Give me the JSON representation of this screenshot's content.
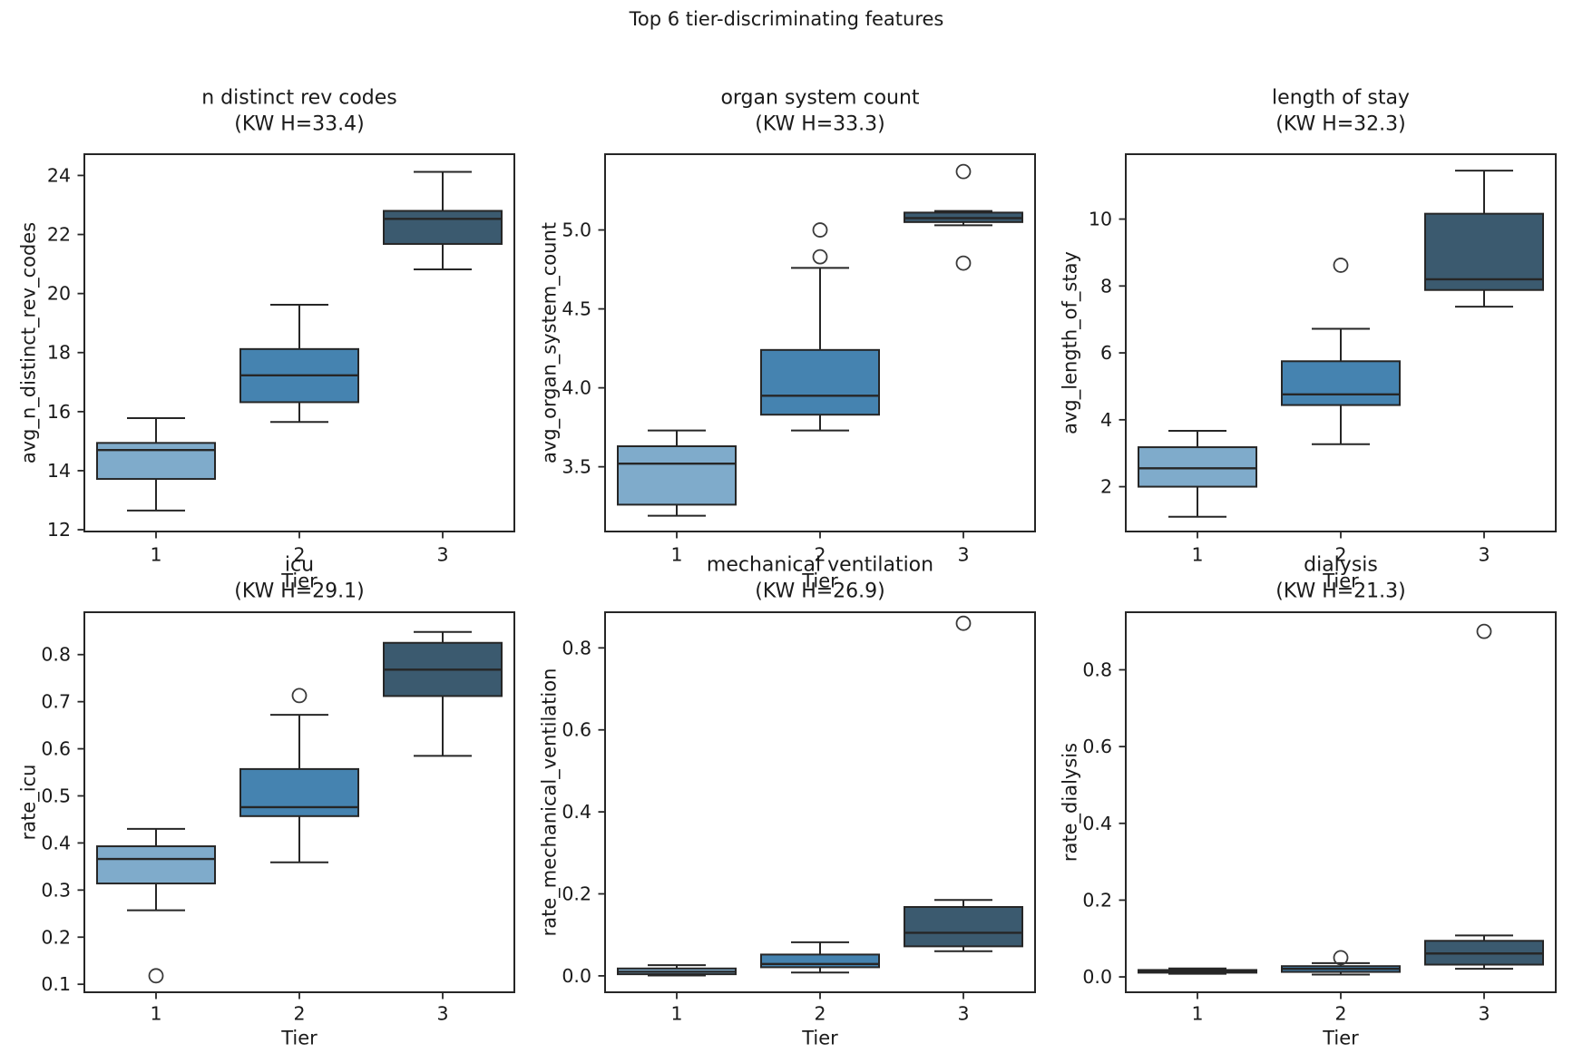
{
  "figure": {
    "title": "Top 6 tier-discriminating features"
  },
  "colors": {
    "background": "#ffffff",
    "tiers": [
      "#7fabcb",
      "#4583b0",
      "#3b5a6f"
    ],
    "edge": "#262626",
    "flier": "#3a3a3a",
    "text": "#1a1a1a"
  },
  "chart_data": [
    {
      "type": "box",
      "id": "n-distinct-rev-codes",
      "title": "n distinct rev codes",
      "subtitle": "(KW H=33.4)",
      "kw_h": 33.4,
      "xlabel": "Tier",
      "ylabel": "avg_n_distinct_rev_codes",
      "categories": [
        "1",
        "2",
        "3"
      ],
      "ylim": [
        11.94,
        24.72
      ],
      "ytick_values": [
        12,
        14,
        16,
        18,
        20,
        22,
        24
      ],
      "ytick_labels": [
        "12",
        "14",
        "16",
        "18",
        "20",
        "22",
        "24"
      ],
      "boxes": [
        {
          "category": "1",
          "whisker_low": 12.65,
          "q1": 13.72,
          "median": 14.7,
          "q3": 14.94,
          "whisker_high": 15.78,
          "fliers": []
        },
        {
          "category": "2",
          "whisker_low": 15.65,
          "q1": 16.32,
          "median": 17.23,
          "q3": 18.12,
          "whisker_high": 19.62,
          "fliers": []
        },
        {
          "category": "3",
          "whisker_low": 20.82,
          "q1": 21.68,
          "median": 22.53,
          "q3": 22.8,
          "whisker_high": 24.12,
          "fliers": []
        }
      ]
    },
    {
      "type": "box",
      "id": "organ-system-count",
      "title": "organ system count",
      "subtitle": "(KW H=33.3)",
      "kw_h": 33.3,
      "xlabel": "Tier",
      "ylabel": "avg_organ_system_count",
      "categories": [
        "1",
        "2",
        "3"
      ],
      "ylim": [
        3.09,
        5.48
      ],
      "ytick_values": [
        3.5,
        4.0,
        4.5,
        5.0
      ],
      "ytick_labels": [
        "3.5",
        "4.0",
        "4.5",
        "5.0"
      ],
      "boxes": [
        {
          "category": "1",
          "whisker_low": 3.19,
          "q1": 3.26,
          "median": 3.52,
          "q3": 3.63,
          "whisker_high": 3.73,
          "fliers": []
        },
        {
          "category": "2",
          "whisker_low": 3.73,
          "q1": 3.83,
          "median": 3.95,
          "q3": 4.24,
          "whisker_high": 4.76,
          "fliers": [
            4.83,
            5.0
          ]
        },
        {
          "category": "3",
          "whisker_low": 5.03,
          "q1": 5.05,
          "median": 5.075,
          "q3": 5.11,
          "whisker_high": 5.12,
          "fliers": [
            5.37,
            4.79
          ]
        }
      ]
    },
    {
      "type": "box",
      "id": "length-of-stay",
      "title": "length of stay",
      "subtitle": "(KW H=32.3)",
      "kw_h": 32.3,
      "xlabel": "Tier",
      "ylabel": "avg_length_of_stay",
      "categories": [
        "1",
        "2",
        "3"
      ],
      "ylim": [
        0.66,
        11.94
      ],
      "ytick_values": [
        2,
        4,
        6,
        8,
        10
      ],
      "ytick_labels": [
        "2",
        "4",
        "6",
        "8",
        "10"
      ],
      "boxes": [
        {
          "category": "1",
          "whisker_low": 1.1,
          "q1": 2.0,
          "median": 2.55,
          "q3": 3.18,
          "whisker_high": 3.67,
          "fliers": []
        },
        {
          "category": "2",
          "whisker_low": 3.27,
          "q1": 4.44,
          "median": 4.76,
          "q3": 5.75,
          "whisker_high": 6.72,
          "fliers": [
            8.62
          ]
        },
        {
          "category": "3",
          "whisker_low": 7.38,
          "q1": 7.88,
          "median": 8.2,
          "q3": 10.16,
          "whisker_high": 11.45,
          "fliers": []
        }
      ]
    },
    {
      "type": "box",
      "id": "icu",
      "title": "icu",
      "subtitle": "(KW H=29.1)",
      "kw_h": 29.1,
      "xlabel": "Tier",
      "ylabel": "rate_icu",
      "categories": [
        "1",
        "2",
        "3"
      ],
      "ylim": [
        0.083,
        0.89
      ],
      "ytick_values": [
        0.1,
        0.2,
        0.3,
        0.4,
        0.5,
        0.6,
        0.7,
        0.8
      ],
      "ytick_labels": [
        "0.1",
        "0.2",
        "0.3",
        "0.4",
        "0.5",
        "0.6",
        "0.7",
        "0.8"
      ],
      "boxes": [
        {
          "category": "1",
          "whisker_low": 0.257,
          "q1": 0.314,
          "median": 0.366,
          "q3": 0.393,
          "whisker_high": 0.43,
          "fliers": [
            0.118
          ]
        },
        {
          "category": "2",
          "whisker_low": 0.359,
          "q1": 0.457,
          "median": 0.476,
          "q3": 0.557,
          "whisker_high": 0.672,
          "fliers": [
            0.713
          ]
        },
        {
          "category": "3",
          "whisker_low": 0.585,
          "q1": 0.712,
          "median": 0.768,
          "q3": 0.825,
          "whisker_high": 0.848,
          "fliers": []
        }
      ]
    },
    {
      "type": "box",
      "id": "mechanical-ventilation",
      "title": "mechanical ventilation",
      "subtitle": "(KW H=26.9)",
      "kw_h": 26.9,
      "xlabel": "Tier",
      "ylabel": "rate_mechanical_ventilation",
      "categories": [
        "1",
        "2",
        "3"
      ],
      "ylim": [
        -0.04,
        0.887
      ],
      "ytick_values": [
        0.0,
        0.2,
        0.4,
        0.6,
        0.8
      ],
      "ytick_labels": [
        "0.0",
        "0.2",
        "0.4",
        "0.6",
        "0.8"
      ],
      "boxes": [
        {
          "category": "1",
          "whisker_low": 0.001,
          "q1": 0.004,
          "median": 0.01,
          "q3": 0.018,
          "whisker_high": 0.026,
          "fliers": []
        },
        {
          "category": "2",
          "whisker_low": 0.008,
          "q1": 0.021,
          "median": 0.029,
          "q3": 0.052,
          "whisker_high": 0.082,
          "fliers": []
        },
        {
          "category": "3",
          "whisker_low": 0.06,
          "q1": 0.072,
          "median": 0.105,
          "q3": 0.168,
          "whisker_high": 0.185,
          "fliers": [
            0.86
          ]
        }
      ]
    },
    {
      "type": "box",
      "id": "dialysis",
      "title": "dialysis",
      "subtitle": "(KW H=21.3)",
      "kw_h": 21.3,
      "xlabel": "Tier",
      "ylabel": "rate_dialysis",
      "categories": [
        "1",
        "2",
        "3"
      ],
      "ylim": [
        -0.04,
        0.95
      ],
      "ytick_values": [
        0.0,
        0.2,
        0.4,
        0.6,
        0.8
      ],
      "ytick_labels": [
        "0.0",
        "0.2",
        "0.4",
        "0.6",
        "0.8"
      ],
      "boxes": [
        {
          "category": "1",
          "whisker_low": 0.008,
          "q1": 0.011,
          "median": 0.0145,
          "q3": 0.018,
          "whisker_high": 0.022,
          "fliers": []
        },
        {
          "category": "2",
          "whisker_low": 0.006,
          "q1": 0.013,
          "median": 0.021,
          "q3": 0.028,
          "whisker_high": 0.036,
          "fliers": [
            0.05
          ]
        },
        {
          "category": "3",
          "whisker_low": 0.021,
          "q1": 0.032,
          "median": 0.061,
          "q3": 0.094,
          "whisker_high": 0.108,
          "fliers": [
            0.9
          ]
        }
      ]
    }
  ]
}
